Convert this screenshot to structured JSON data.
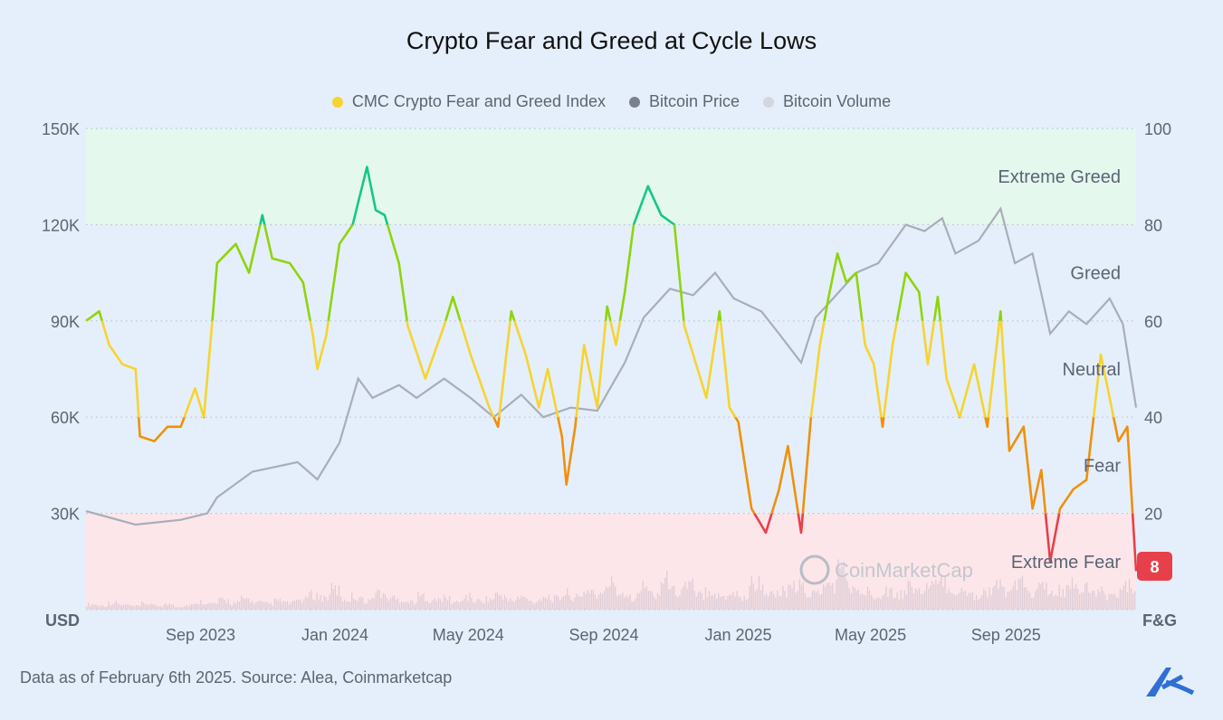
{
  "title": "Crypto Fear and Greed at Cycle Lows",
  "legend": [
    {
      "label": "CMC Crypto Fear and Greed Index",
      "color": "#f5d431"
    },
    {
      "label": "Bitcoin Price",
      "color": "#7a818c"
    },
    {
      "label": "Bitcoin Volume",
      "color": "#d3d6de"
    }
  ],
  "footer": "Data as of February 6th 2025. Source: Alea, Coinmarketcap",
  "watermark": "CoinMarketCap",
  "chart_data": {
    "type": "line",
    "title": "Crypto Fear and Greed at Cycle Lows",
    "x_ticks": [
      {
        "label": "Sep 2023",
        "date": "2023-09-01"
      },
      {
        "label": "Jan 2024",
        "date": "2024-01-01"
      },
      {
        "label": "May 2024",
        "date": "2024-05-01"
      },
      {
        "label": "Sep 2024",
        "date": "2024-09-01"
      },
      {
        "label": "Jan 2025",
        "date": "2025-01-01"
      },
      {
        "label": "May 2025",
        "date": "2025-05-01"
      },
      {
        "label": "Sep 2025",
        "date": "2025-09-01"
      }
    ],
    "x_range": [
      "2023-05-25",
      "2026-01-02"
    ],
    "left_axis": {
      "label": "USD",
      "range": [
        0,
        150000
      ],
      "ticks": [
        "30K",
        "60K",
        "90K",
        "120K",
        "150K"
      ],
      "tick_values": [
        30000,
        60000,
        90000,
        120000,
        150000
      ]
    },
    "right_axis": {
      "label": "F&G",
      "range": [
        0,
        100
      ],
      "ticks": [
        "20",
        "40",
        "60",
        "80",
        "100"
      ],
      "tick_values": [
        20,
        40,
        60,
        80,
        100
      ]
    },
    "grid": "dotted horizontal",
    "legend_position": "top",
    "zones": [
      {
        "label": "Extreme Fear",
        "from": 0,
        "to": 20,
        "line_color": "#e8404a",
        "band_color": "#fde6e9"
      },
      {
        "label": "Fear",
        "from": 20,
        "to": 40,
        "line_color": "#f0900a"
      },
      {
        "label": "Neutral",
        "from": 40,
        "to": 60,
        "line_color": "#f5d431"
      },
      {
        "label": "Greed",
        "from": 60,
        "to": 80,
        "line_color": "#8fd40a"
      },
      {
        "label": "Extreme Greed",
        "from": 80,
        "to": 100,
        "line_color": "#16c784",
        "band_color": "#e5f8ee"
      }
    ],
    "current_value_badge": {
      "value": "8",
      "color": "#e8404a"
    },
    "series": [
      {
        "name": "CMC Crypto Fear and Greed Index",
        "axis": "right",
        "points": [
          [
            "2023-05-25",
            60
          ],
          [
            "2023-06-06",
            62
          ],
          [
            "2023-06-15",
            55
          ],
          [
            "2023-06-27",
            51
          ],
          [
            "2023-07-09",
            50
          ],
          [
            "2023-07-13",
            36
          ],
          [
            "2023-07-26",
            35
          ],
          [
            "2023-08-07",
            38
          ],
          [
            "2023-08-19",
            38
          ],
          [
            "2023-09-01",
            46
          ],
          [
            "2023-09-09",
            40
          ],
          [
            "2023-09-17",
            61
          ],
          [
            "2023-09-21",
            72
          ],
          [
            "2023-10-08",
            76
          ],
          [
            "2023-10-20",
            70
          ],
          [
            "2023-11-01",
            82
          ],
          [
            "2023-11-10",
            73
          ],
          [
            "2023-11-26",
            72
          ],
          [
            "2023-12-08",
            68
          ],
          [
            "2023-12-17",
            57
          ],
          [
            "2023-12-21",
            50
          ],
          [
            "2023-12-29",
            57
          ],
          [
            "2024-01-10",
            76
          ],
          [
            "2024-01-22",
            80
          ],
          [
            "2024-02-04",
            92
          ],
          [
            "2024-02-12",
            83
          ],
          [
            "2024-02-20",
            82
          ],
          [
            "2024-03-04",
            72
          ],
          [
            "2024-03-12",
            59
          ],
          [
            "2024-03-28",
            48
          ],
          [
            "2024-04-14",
            59
          ],
          [
            "2024-04-22",
            65
          ],
          [
            "2024-05-08",
            53
          ],
          [
            "2024-05-25",
            42
          ],
          [
            "2024-06-02",
            38
          ],
          [
            "2024-06-14",
            62
          ],
          [
            "2024-06-27",
            53
          ],
          [
            "2024-07-09",
            42
          ],
          [
            "2024-07-17",
            50
          ],
          [
            "2024-07-30",
            36
          ],
          [
            "2024-08-03",
            26
          ],
          [
            "2024-08-11",
            38
          ],
          [
            "2024-08-19",
            55
          ],
          [
            "2024-08-31",
            42
          ],
          [
            "2024-09-09",
            63
          ],
          [
            "2024-09-17",
            55
          ],
          [
            "2024-09-25",
            66
          ],
          [
            "2024-10-03",
            80
          ],
          [
            "2024-10-16",
            88
          ],
          [
            "2024-10-28",
            82
          ],
          [
            "2024-11-09",
            80
          ],
          [
            "2024-11-18",
            59
          ],
          [
            "2024-11-30",
            50
          ],
          [
            "2024-12-08",
            44
          ],
          [
            "2024-12-20",
            62
          ],
          [
            "2024-12-29",
            42
          ],
          [
            "2025-01-06",
            39
          ],
          [
            "2025-01-18",
            21
          ],
          [
            "2025-01-31",
            16
          ],
          [
            "2025-02-12",
            25
          ],
          [
            "2025-02-20",
            34
          ],
          [
            "2025-03-04",
            16
          ],
          [
            "2025-03-13",
            40
          ],
          [
            "2025-03-21",
            55
          ],
          [
            "2025-03-29",
            65
          ],
          [
            "2025-04-06",
            74
          ],
          [
            "2025-04-14",
            68
          ],
          [
            "2025-04-23",
            70
          ],
          [
            "2025-05-01",
            55
          ],
          [
            "2025-05-09",
            51
          ],
          [
            "2025-05-17",
            38
          ],
          [
            "2025-05-26",
            55
          ],
          [
            "2025-06-07",
            70
          ],
          [
            "2025-06-19",
            66
          ],
          [
            "2025-06-27",
            51
          ],
          [
            "2025-07-06",
            65
          ],
          [
            "2025-07-14",
            48
          ],
          [
            "2025-07-26",
            40
          ],
          [
            "2025-08-08",
            51
          ],
          [
            "2025-08-20",
            38
          ],
          [
            "2025-09-01",
            62
          ],
          [
            "2025-09-09",
            33
          ],
          [
            "2025-09-22",
            38
          ],
          [
            "2025-09-30",
            21
          ],
          [
            "2025-10-08",
            29
          ],
          [
            "2025-10-16",
            10
          ],
          [
            "2025-10-25",
            21
          ],
          [
            "2025-11-06",
            25
          ],
          [
            "2025-11-18",
            27
          ],
          [
            "2025-12-01",
            53
          ],
          [
            "2025-12-09",
            44
          ],
          [
            "2025-12-17",
            35
          ],
          [
            "2025-12-25",
            38
          ],
          [
            "2026-01-02",
            8
          ]
        ]
      },
      {
        "name": "Bitcoin Price",
        "axis": "left",
        "color": "#a9adb8",
        "points": [
          [
            "2023-05-25",
            30700
          ],
          [
            "2023-07-09",
            26500
          ],
          [
            "2023-08-19",
            28000
          ],
          [
            "2023-09-12",
            30000
          ],
          [
            "2023-09-21",
            35000
          ],
          [
            "2023-10-23",
            43000
          ],
          [
            "2023-12-03",
            46000
          ],
          [
            "2023-12-21",
            40600
          ],
          [
            "2024-01-10",
            52000
          ],
          [
            "2024-01-27",
            72000
          ],
          [
            "2024-02-09",
            66000
          ],
          [
            "2024-03-04",
            70000
          ],
          [
            "2024-03-20",
            66000
          ],
          [
            "2024-04-14",
            72000
          ],
          [
            "2024-05-08",
            66000
          ],
          [
            "2024-05-29",
            60000
          ],
          [
            "2024-06-23",
            67000
          ],
          [
            "2024-07-13",
            60000
          ],
          [
            "2024-08-07",
            63000
          ],
          [
            "2024-08-31",
            62000
          ],
          [
            "2024-09-25",
            77000
          ],
          [
            "2024-10-12",
            91000
          ],
          [
            "2024-11-05",
            100000
          ],
          [
            "2024-11-26",
            98000
          ],
          [
            "2024-12-16",
            105000
          ],
          [
            "2025-01-02",
            97000
          ],
          [
            "2025-01-27",
            93000
          ],
          [
            "2025-02-12",
            86000
          ],
          [
            "2025-03-04",
            77000
          ],
          [
            "2025-03-17",
            91000
          ],
          [
            "2025-04-02",
            97000
          ],
          [
            "2025-04-23",
            105000
          ],
          [
            "2025-05-13",
            108000
          ],
          [
            "2025-06-07",
            120000
          ],
          [
            "2025-06-24",
            118000
          ],
          [
            "2025-07-10",
            122000
          ],
          [
            "2025-07-22",
            111000
          ],
          [
            "2025-08-12",
            115000
          ],
          [
            "2025-09-01",
            125000
          ],
          [
            "2025-09-14",
            108000
          ],
          [
            "2025-09-30",
            111000
          ],
          [
            "2025-10-16",
            86000
          ],
          [
            "2025-11-02",
            93000
          ],
          [
            "2025-11-18",
            89000
          ],
          [
            "2025-12-09",
            97000
          ],
          [
            "2025-12-21",
            89000
          ],
          [
            "2026-01-02",
            63000
          ]
        ]
      },
      {
        "name": "Bitcoin Volume",
        "axis": "none",
        "color": "#d8c8d4",
        "relative_values": [
          8,
          6,
          10,
          7,
          5,
          9,
          6,
          8,
          5,
          7,
          12,
          9,
          14,
          10,
          16,
          11,
          9,
          13,
          10,
          15,
          22,
          18,
          30,
          16,
          20,
          14,
          26,
          18,
          15,
          12,
          20,
          14,
          17,
          11,
          19,
          13,
          16,
          22,
          14,
          18,
          12,
          20,
          16,
          24,
          18,
          30,
          22,
          40,
          26,
          20,
          34,
          24,
          44,
          28,
          38,
          22,
          30,
          20,
          26,
          18,
          40,
          30,
          22,
          28,
          34,
          24,
          30,
          38,
          60,
          28,
          26,
          24,
          30,
          22,
          36,
          28,
          34,
          40,
          30,
          26,
          22,
          28,
          34,
          30,
          38,
          26,
          32,
          24,
          28,
          36,
          30,
          26,
          22,
          28,
          34
        ]
      }
    ]
  }
}
